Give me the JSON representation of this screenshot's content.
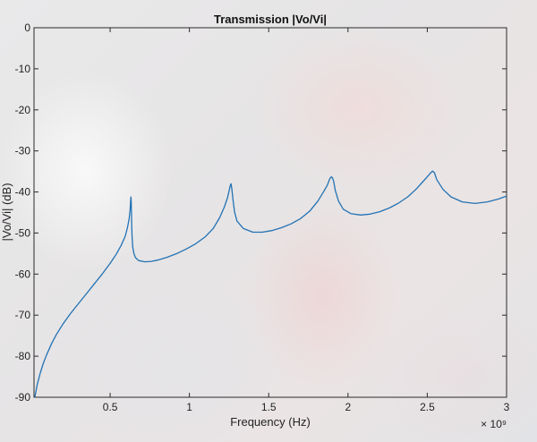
{
  "chart_data": {
    "type": "line",
    "title": "Transmission |Vo/Vi|",
    "xlabel": "Frequency (Hz)",
    "ylabel": "|Vo/Vi| (dB)",
    "xlim": [
      0.02,
      3.0
    ],
    "ylim": [
      -90,
      0
    ],
    "x_exponent_label": "× 10⁹",
    "xticks": [
      0.5,
      1,
      1.5,
      2,
      2.5,
      3
    ],
    "xtick_labels": [
      "0.5",
      "1",
      "1.5",
      "2",
      "2.5",
      "3"
    ],
    "yticks": [
      0,
      -10,
      -20,
      -30,
      -40,
      -50,
      -60,
      -70,
      -80,
      -90
    ],
    "ytick_labels": [
      "0",
      "-10",
      "-20",
      "-30",
      "-40",
      "-50",
      "-60",
      "-70",
      "-80",
      "-90"
    ],
    "grid": false,
    "series": [
      {
        "color": "#2272b4",
        "x": [
          0.025,
          0.04,
          0.06,
          0.08,
          0.1,
          0.13,
          0.16,
          0.2,
          0.25,
          0.3,
          0.35,
          0.4,
          0.45,
          0.5,
          0.54,
          0.57,
          0.595,
          0.61,
          0.62,
          0.626,
          0.629,
          0.631,
          0.633,
          0.634,
          0.636,
          0.638,
          0.642,
          0.65,
          0.66,
          0.68,
          0.72,
          0.76,
          0.8,
          0.86,
          0.92,
          0.98,
          1.04,
          1.1,
          1.15,
          1.19,
          1.22,
          1.24,
          1.25,
          1.257,
          1.262,
          1.267,
          1.275,
          1.285,
          1.3,
          1.34,
          1.4,
          1.46,
          1.52,
          1.58,
          1.64,
          1.7,
          1.76,
          1.81,
          1.85,
          1.87,
          1.885,
          1.895,
          1.903,
          1.91,
          1.92,
          1.94,
          1.97,
          2.02,
          2.08,
          2.14,
          2.2,
          2.26,
          2.32,
          2.38,
          2.43,
          2.47,
          2.5,
          2.52,
          2.533,
          2.545,
          2.56,
          2.6,
          2.65,
          2.72,
          2.8,
          2.88,
          2.95,
          3.0
        ],
        "values": [
          -90,
          -87,
          -84,
          -81.6,
          -79.6,
          -77,
          -74.8,
          -72.3,
          -69.6,
          -67.2,
          -64.8,
          -62.4,
          -60,
          -57.4,
          -55.1,
          -53,
          -50.8,
          -48.6,
          -46.5,
          -44.2,
          -42.3,
          -41.2,
          -42.2,
          -44.3,
          -47.5,
          -50.5,
          -53.2,
          -55,
          -56,
          -56.7,
          -57,
          -56.9,
          -56.6,
          -55.9,
          -55,
          -53.9,
          -52.6,
          -50.9,
          -48.9,
          -46.3,
          -43.7,
          -41.4,
          -39.8,
          -38.5,
          -38,
          -39,
          -42,
          -44.9,
          -47.1,
          -48.9,
          -49.8,
          -49.8,
          -49.4,
          -48.7,
          -47.8,
          -46.5,
          -44.6,
          -42.2,
          -39.7,
          -38.3,
          -36.8,
          -36.3,
          -36.6,
          -37.5,
          -39.6,
          -42.2,
          -44.2,
          -45.3,
          -45.6,
          -45.4,
          -44.8,
          -43.9,
          -42.7,
          -41.1,
          -39.3,
          -37.6,
          -36.3,
          -35.4,
          -34.9,
          -35.3,
          -37,
          -39.4,
          -41.2,
          -42.4,
          -42.8,
          -42.4,
          -41.7,
          -41
        ]
      }
    ]
  }
}
